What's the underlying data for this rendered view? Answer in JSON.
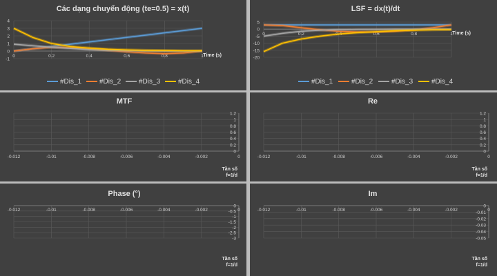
{
  "chart_data": [
    {
      "type": "line",
      "title": "Các dạng chuyển động (te=0.5)  = x(t)",
      "xlabel": "Time (s)",
      "ylabel": "",
      "xlim": [
        0,
        1
      ],
      "ylim": [
        -1,
        4
      ],
      "xticks": [
        "0",
        "0.2",
        "0.4",
        "0.6",
        "0.8",
        "1"
      ],
      "yticks": [
        "4",
        "3",
        "2",
        "1",
        "0",
        "-1"
      ],
      "legend": "bottom",
      "series": [
        {
          "name": "#Dis_1",
          "color": "#5b9bd5",
          "x": [
            0,
            0.1,
            0.2,
            0.3,
            0.4,
            0.5,
            0.6,
            0.7,
            0.8,
            0.9,
            1.0
          ],
          "values": [
            0,
            0.3,
            0.6,
            0.9,
            1.2,
            1.5,
            1.8,
            2.1,
            2.4,
            2.7,
            3.0
          ]
        },
        {
          "name": "#Dis_2",
          "color": "#ed7d31",
          "x": [
            0,
            0.1,
            0.2,
            0.3,
            0.4,
            0.5,
            0.6,
            0.7,
            0.8,
            0.9,
            1.0
          ],
          "values": [
            0,
            0.3,
            0.5,
            0.45,
            0.3,
            0.1,
            -0.1,
            -0.25,
            -0.35,
            -0.25,
            0
          ]
        },
        {
          "name": "#Dis_3",
          "color": "#a5a5a5",
          "x": [
            0,
            0.1,
            0.2,
            0.3,
            0.4,
            0.5,
            0.6,
            0.7,
            0.8,
            0.9,
            1.0
          ],
          "values": [
            0.9,
            0.7,
            0.5,
            0.35,
            0.2,
            0.1,
            0.05,
            0.02,
            0,
            0,
            0
          ]
        },
        {
          "name": "#Dis_4",
          "color": "#ffc000",
          "x": [
            0,
            0.1,
            0.2,
            0.3,
            0.4,
            0.5,
            0.6,
            0.7,
            0.8,
            0.9,
            1.0
          ],
          "values": [
            3.0,
            1.8,
            1.0,
            0.6,
            0.4,
            0.25,
            0.15,
            0.1,
            0.08,
            0.05,
            0.05
          ]
        }
      ]
    },
    {
      "type": "line",
      "title": "LSF = dx(t)/dt",
      "xlabel": "Time (s)",
      "ylabel": "",
      "xlim": [
        0,
        1
      ],
      "ylim": [
        -20,
        5
      ],
      "xticks": [
        "0",
        "0.2",
        "0.4",
        "0.6",
        "0.8",
        "1"
      ],
      "yticks": [
        "5",
        "0",
        "-5",
        "-10",
        "-15",
        "-20"
      ],
      "legend": "bottom",
      "series": [
        {
          "name": "#Dis_1",
          "color": "#5b9bd5",
          "x": [
            0,
            0.1,
            0.2,
            0.3,
            0.4,
            0.5,
            0.6,
            0.7,
            0.8,
            0.9,
            1.0
          ],
          "values": [
            3,
            3,
            3,
            3,
            3,
            3,
            3,
            3,
            3,
            3,
            3
          ]
        },
        {
          "name": "#Dis_2",
          "color": "#ed7d31",
          "x": [
            0,
            0.1,
            0.2,
            0.3,
            0.4,
            0.5,
            0.6,
            0.7,
            0.8,
            0.9,
            1.0
          ],
          "values": [
            3,
            2.5,
            1,
            -0.5,
            -1.5,
            -2,
            -2,
            -1.5,
            -0.5,
            1,
            3
          ]
        },
        {
          "name": "#Dis_3",
          "color": "#a5a5a5",
          "x": [
            0,
            0.1,
            0.2,
            0.3,
            0.4,
            0.5,
            0.6,
            0.7,
            0.8,
            0.9,
            1.0
          ],
          "values": [
            -5,
            -3,
            -1.5,
            -0.8,
            -0.4,
            -0.2,
            -0.1,
            0,
            0,
            0,
            0
          ]
        },
        {
          "name": "#Dis_4",
          "color": "#ffc000",
          "x": [
            0,
            0.05,
            0.1,
            0.2,
            0.3,
            0.4,
            0.5,
            0.6,
            0.7,
            0.8,
            0.9,
            1.0
          ],
          "values": [
            -16,
            -13,
            -10,
            -7,
            -5,
            -3.5,
            -2.5,
            -1.8,
            -1.2,
            -0.8,
            -0.5,
            -0.4
          ]
        }
      ]
    },
    {
      "type": "line",
      "title": "MTF",
      "xlabel": "Tần số\nf=1/d",
      "ylabel": "",
      "xlim": [
        -0.012,
        0
      ],
      "ylim": [
        0,
        1.2
      ],
      "xticks": [
        "-0.012",
        "-0.01",
        "-0.008",
        "-0.006",
        "-0.004",
        "-0.002",
        "0"
      ],
      "yticks": [
        "1.2",
        "1",
        "0.8",
        "0.6",
        "0.4",
        "0.2",
        "0"
      ],
      "series": []
    },
    {
      "type": "line",
      "title": "Re",
      "xlabel": "Tần số\nf=1/d",
      "ylabel": "",
      "xlim": [
        -0.012,
        0
      ],
      "ylim": [
        0,
        1.2
      ],
      "xticks": [
        "-0.012",
        "-0.01",
        "-0.008",
        "-0.006",
        "-0.004",
        "-0.002",
        "0"
      ],
      "yticks": [
        "1.2",
        "1",
        "0.8",
        "0.6",
        "0.4",
        "0.2",
        "0"
      ],
      "series": []
    },
    {
      "type": "line",
      "title": "Phase (°)",
      "xlabel": "Tần số\nf=1/d",
      "ylabel": "",
      "xlim": [
        -0.012,
        0
      ],
      "ylim": [
        -3,
        0
      ],
      "xticks": [
        "-0.012",
        "-0.01",
        "-0.008",
        "-0.006",
        "-0.004",
        "-0.002",
        "0"
      ],
      "yticks": [
        "0",
        "-0.5",
        "-1",
        "-1.5",
        "-2",
        "-2.5",
        "-3"
      ],
      "series": []
    },
    {
      "type": "line",
      "title": "Im",
      "xlabel": "Tần số\nf=1/d",
      "ylabel": "",
      "xlim": [
        -0.012,
        0
      ],
      "ylim": [
        -0.05,
        0
      ],
      "xticks": [
        "-0.012",
        "-0.01",
        "-0.008",
        "-0.006",
        "-0.004",
        "-0.002",
        "0"
      ],
      "yticks": [
        "0",
        "-0.01",
        "-0.02",
        "-0.03",
        "-0.04",
        "-0.05"
      ],
      "series": []
    }
  ]
}
